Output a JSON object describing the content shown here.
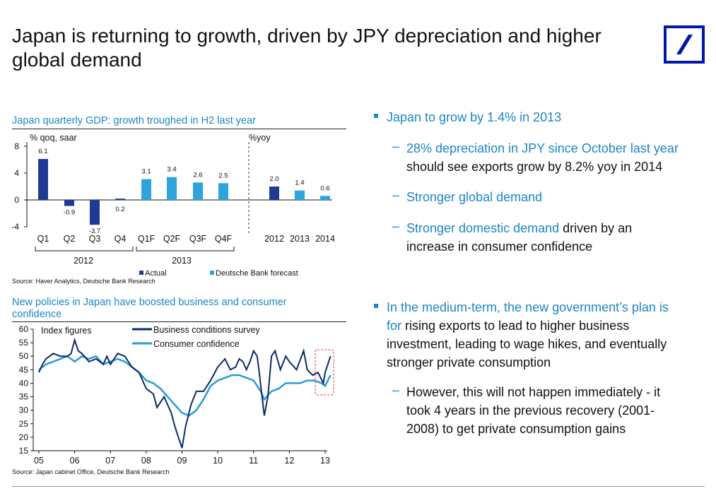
{
  "header": {
    "title": "Japan is returning to growth, driven by JPY depreciation and higher global demand",
    "logo_icon": "deutsche-bank-logo-icon",
    "brand_color": "#0018a8",
    "accent_color": "#1b87c6"
  },
  "chart_data": [
    {
      "type": "bar",
      "title": "Japan quarterly GDP: growth troughed in H2 last year",
      "ylabel_left": "% qoq, saar",
      "ylabel_right": "%yoy",
      "ylim": [
        -4,
        8
      ],
      "yticks": [
        "8",
        "4",
        "0",
        "-4"
      ],
      "ytick_values": [
        8,
        4,
        0,
        -4
      ],
      "categories": [
        "Q1",
        "Q2",
        "Q3",
        "Q4",
        "Q1F",
        "Q2F",
        "Q3F",
        "Q4F",
        "2012",
        "2013",
        "2014"
      ],
      "values": [
        6.1,
        -0.9,
        -3.7,
        0.2,
        3.1,
        3.4,
        2.6,
        2.5,
        2.0,
        1.4,
        0.6
      ],
      "value_labels": [
        "6.1",
        "-0.9",
        "-3.7",
        "0.2",
        "3.1",
        "3.4",
        "2.6",
        "2.5",
        "2.0",
        "1.4",
        "0.6"
      ],
      "groups": [
        "2012",
        "2013"
      ],
      "series": [
        {
          "name": "Actual",
          "color": "#1f3a93"
        },
        {
          "name": "Deutsche Bank forecast",
          "color": "#2ea3dc"
        }
      ],
      "source": "Source: Haver Analytics, Deutsche Bank Research"
    },
    {
      "type": "line",
      "title": "New policies in Japan have boosted business and consumer confidence",
      "ylabel": "Index figures",
      "ylim": [
        15,
        60
      ],
      "yticks": [
        "60",
        "55",
        "50",
        "45",
        "40",
        "35",
        "30",
        "25",
        "20",
        "15"
      ],
      "ytick_values": [
        60,
        55,
        50,
        45,
        40,
        35,
        30,
        25,
        20,
        15
      ],
      "xticks": [
        "05",
        "06",
        "07",
        "08",
        "09",
        "10",
        "11",
        "12",
        "13"
      ],
      "xlim": [
        2005,
        2013
      ],
      "series": [
        {
          "name": "Business conditions survey",
          "color": "#0d2a6b",
          "x": [
            2005.0,
            2005.1,
            2005.2,
            2005.3,
            2005.4,
            2005.6,
            2005.8,
            2005.9,
            2006.0,
            2006.1,
            2006.2,
            2006.4,
            2006.6,
            2006.8,
            2006.9,
            2007.0,
            2007.2,
            2007.4,
            2007.6,
            2007.8,
            2008.0,
            2008.2,
            2008.3,
            2008.5,
            2008.6,
            2008.7,
            2008.8,
            2008.9,
            2009.0,
            2009.1,
            2009.25,
            2009.4,
            2009.6,
            2009.8,
            2010.0,
            2010.2,
            2010.35,
            2010.5,
            2010.6,
            2010.7,
            2010.8,
            2010.9,
            2011.0,
            2011.1,
            2011.15,
            2011.3,
            2011.4,
            2011.5,
            2011.6,
            2011.75,
            2011.9,
            2012.0,
            2012.2,
            2012.4,
            2012.5,
            2012.65,
            2012.8,
            2012.95,
            2013.0,
            2013.15
          ],
          "y": [
            44,
            47,
            49,
            50,
            51,
            50,
            50,
            51,
            56,
            52,
            51,
            48,
            49,
            47,
            50,
            47,
            51,
            50,
            46,
            44,
            38,
            36,
            31,
            35,
            32,
            29,
            24,
            20,
            16,
            24,
            32,
            37,
            37,
            41,
            46,
            49,
            45,
            46,
            49,
            48,
            45,
            48,
            52,
            50,
            45,
            28,
            35,
            50,
            52,
            45,
            50,
            48,
            45,
            52,
            45,
            43,
            44,
            40,
            44,
            50
          ]
        },
        {
          "name": "Consumer confidence",
          "color": "#2b9ad8",
          "x": [
            2005.0,
            2005.2,
            2005.4,
            2005.6,
            2005.8,
            2006.0,
            2006.2,
            2006.4,
            2006.6,
            2006.8,
            2007.0,
            2007.2,
            2007.4,
            2007.6,
            2007.8,
            2008.0,
            2008.2,
            2008.4,
            2008.6,
            2008.8,
            2009.0,
            2009.2,
            2009.4,
            2009.6,
            2009.8,
            2010.0,
            2010.2,
            2010.4,
            2010.6,
            2010.8,
            2011.0,
            2011.2,
            2011.3,
            2011.5,
            2011.7,
            2011.9,
            2012.1,
            2012.3,
            2012.5,
            2012.7,
            2012.9,
            2013.0,
            2013.15
          ],
          "y": [
            45,
            47,
            48,
            49,
            50,
            48,
            50,
            49,
            50,
            47,
            48,
            49,
            48,
            46,
            44,
            41,
            40,
            38,
            35,
            32,
            29,
            28,
            30,
            34,
            39,
            41,
            42,
            43,
            43,
            42,
            41,
            37,
            34,
            37,
            38,
            40,
            40,
            40,
            41,
            41,
            40,
            39,
            43
          ]
        }
      ],
      "source": "Source: Japan cabinet Office, Deutsche Bank Research"
    }
  ],
  "bullets": {
    "b1": {
      "text": "Japan to grow by 1.4% in 2013"
    },
    "s1": {
      "blue": "28% depreciation in JPY since October last year",
      "rest": "should see exports grow by 8.2% yoy in 2014"
    },
    "s2": {
      "blue": "Stronger global demand"
    },
    "s3": {
      "blue": "Stronger domestic demand",
      "rest1": " driven by an",
      "rest2": "increase in consumer confidence"
    },
    "b2": {
      "l1": "In the medium-term, the new government’s plan is",
      "l2a": "for",
      "l2b": " rising exports to lead to higher business",
      "l3": "investment, leading to wage hikes, and eventually",
      "l4": "stronger private consumption"
    },
    "s4": {
      "l1": "However, this will not happen immediately - it",
      "l2": "took 4 years in the previous recovery (2001-",
      "l3": "2008) to get private consumption gains"
    },
    "dash": "–"
  }
}
